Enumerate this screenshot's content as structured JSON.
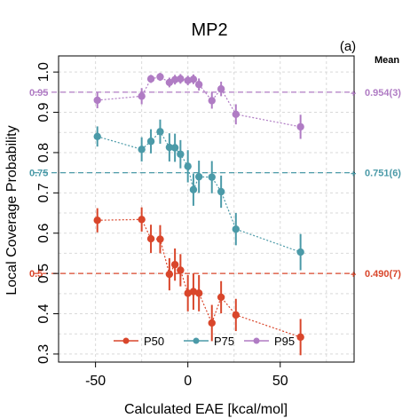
{
  "chart_data": {
    "type": "scatter",
    "title": "MP2",
    "panel_label": "(a)",
    "xlabel": "Calculated EAE [kcal/mol]",
    "ylabel": "Local Coverage Probability",
    "xlim": [
      -70,
      90
    ],
    "ylim": [
      0.28,
      1.04
    ],
    "xticks": [
      -50,
      0,
      50
    ],
    "yticks": [
      0.3,
      0.4,
      0.5,
      0.6,
      0.7,
      0.8,
      0.9,
      1.0
    ],
    "ytick_labels": [
      "0.3",
      "0.4",
      "0.5",
      "0.6",
      "0.7",
      "0.8",
      "0.9",
      "1.0"
    ],
    "grid": true,
    "legend_position": "bottom-center",
    "mean_header": "Mean",
    "series": [
      {
        "name": "P50",
        "color": "#d9462b",
        "target": 0.5,
        "target_label": "0.5",
        "mean_label": "0.490(7)",
        "x": [
          -49,
          -25,
          -20,
          -15,
          -10,
          -7,
          -4,
          0,
          3,
          6,
          13,
          18,
          26,
          61
        ],
        "y": [
          0.632,
          0.634,
          0.586,
          0.585,
          0.498,
          0.522,
          0.508,
          0.451,
          0.455,
          0.451,
          0.377,
          0.441,
          0.397,
          0.342
        ],
        "err": [
          0.03,
          0.03,
          0.035,
          0.035,
          0.04,
          0.04,
          0.04,
          0.045,
          0.045,
          0.045,
          0.045,
          0.04,
          0.04,
          0.045
        ]
      },
      {
        "name": "P75",
        "color": "#4b9aa8",
        "target": 0.75,
        "target_label": "0.75",
        "mean_label": "0.751(6)",
        "x": [
          -49,
          -25,
          -20,
          -15,
          -10,
          -7,
          -4,
          0,
          3,
          6,
          13,
          18,
          26,
          61
        ],
        "y": [
          0.84,
          0.808,
          0.828,
          0.852,
          0.813,
          0.812,
          0.796,
          0.766,
          0.708,
          0.74,
          0.739,
          0.703,
          0.61,
          0.553
        ],
        "err": [
          0.025,
          0.03,
          0.03,
          0.03,
          0.035,
          0.035,
          0.035,
          0.04,
          0.04,
          0.04,
          0.04,
          0.04,
          0.04,
          0.045
        ]
      },
      {
        "name": "P95",
        "color": "#b07cc4",
        "target": 0.95,
        "target_label": "0.95",
        "mean_label": "0.954(3)",
        "x": [
          -49,
          -25,
          -20,
          -15,
          -10,
          -7,
          -4,
          0,
          3,
          6,
          13,
          18,
          26,
          61
        ],
        "y": [
          0.93,
          0.94,
          0.983,
          0.988,
          0.974,
          0.981,
          0.983,
          0.979,
          0.982,
          0.969,
          0.929,
          0.958,
          0.895,
          0.864
        ],
        "err": [
          0.02,
          0.02,
          0.01,
          0.01,
          0.012,
          0.012,
          0.012,
          0.012,
          0.012,
          0.015,
          0.02,
          0.018,
          0.025,
          0.03
        ]
      }
    ]
  }
}
